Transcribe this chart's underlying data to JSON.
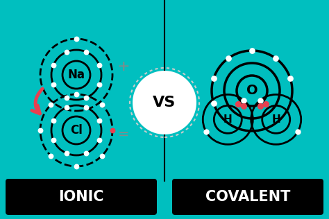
{
  "bg_color": "#00BFBF",
  "divider_color": "#000000",
  "label_bg_color": "#000000",
  "label_text_color": "#ffffff",
  "ionic_label": "IONIC",
  "covalent_label": "COVALENT",
  "vs_text": "VS",
  "atom_outline_color": "#000000",
  "electron_white": "#ffffff",
  "electron_red": "#e84050",
  "arrow_red": "#e84050",
  "na_label": "Na",
  "cl_label": "Cl",
  "o_label": "O",
  "h_label": "H",
  "fig_w": 4.74,
  "fig_h": 3.16,
  "dpi": 100
}
